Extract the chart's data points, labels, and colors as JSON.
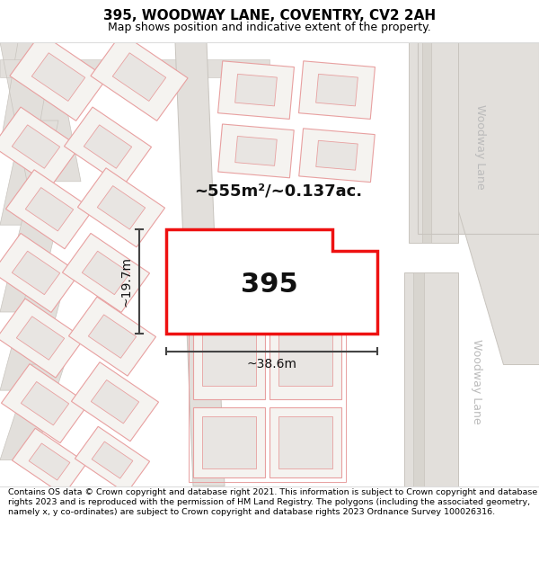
{
  "title": "395, WOODWAY LANE, COVENTRY, CV2 2AH",
  "subtitle": "Map shows position and indicative extent of the property.",
  "footer": "Contains OS data © Crown copyright and database right 2021. This information is subject to Crown copyright and database rights 2023 and is reproduced with the permission of HM Land Registry. The polygons (including the associated geometry, namely x, y co-ordinates) are subject to Crown copyright and database rights 2023 Ordnance Survey 100026316.",
  "area_label": "~555m²/~0.137ac.",
  "width_label": "~38.6m",
  "height_label": "~19.7m",
  "plot_number": "395",
  "map_bg": "#f0efed",
  "road_fill": "#e2dfdb",
  "road_line": "#c8c4be",
  "plot_outline_color": "#ee1111",
  "plot_fill_color": "#ffffff",
  "neighbor_fill": "#f5f3f0",
  "neighbor_inner_fill": "#e8e5e2",
  "neighbor_line": "#e8a0a0",
  "road_label_color": "#bbbbbb",
  "dimension_color": "#444444",
  "title_fontsize": 11,
  "subtitle_fontsize": 9,
  "footer_fontsize": 6.8
}
